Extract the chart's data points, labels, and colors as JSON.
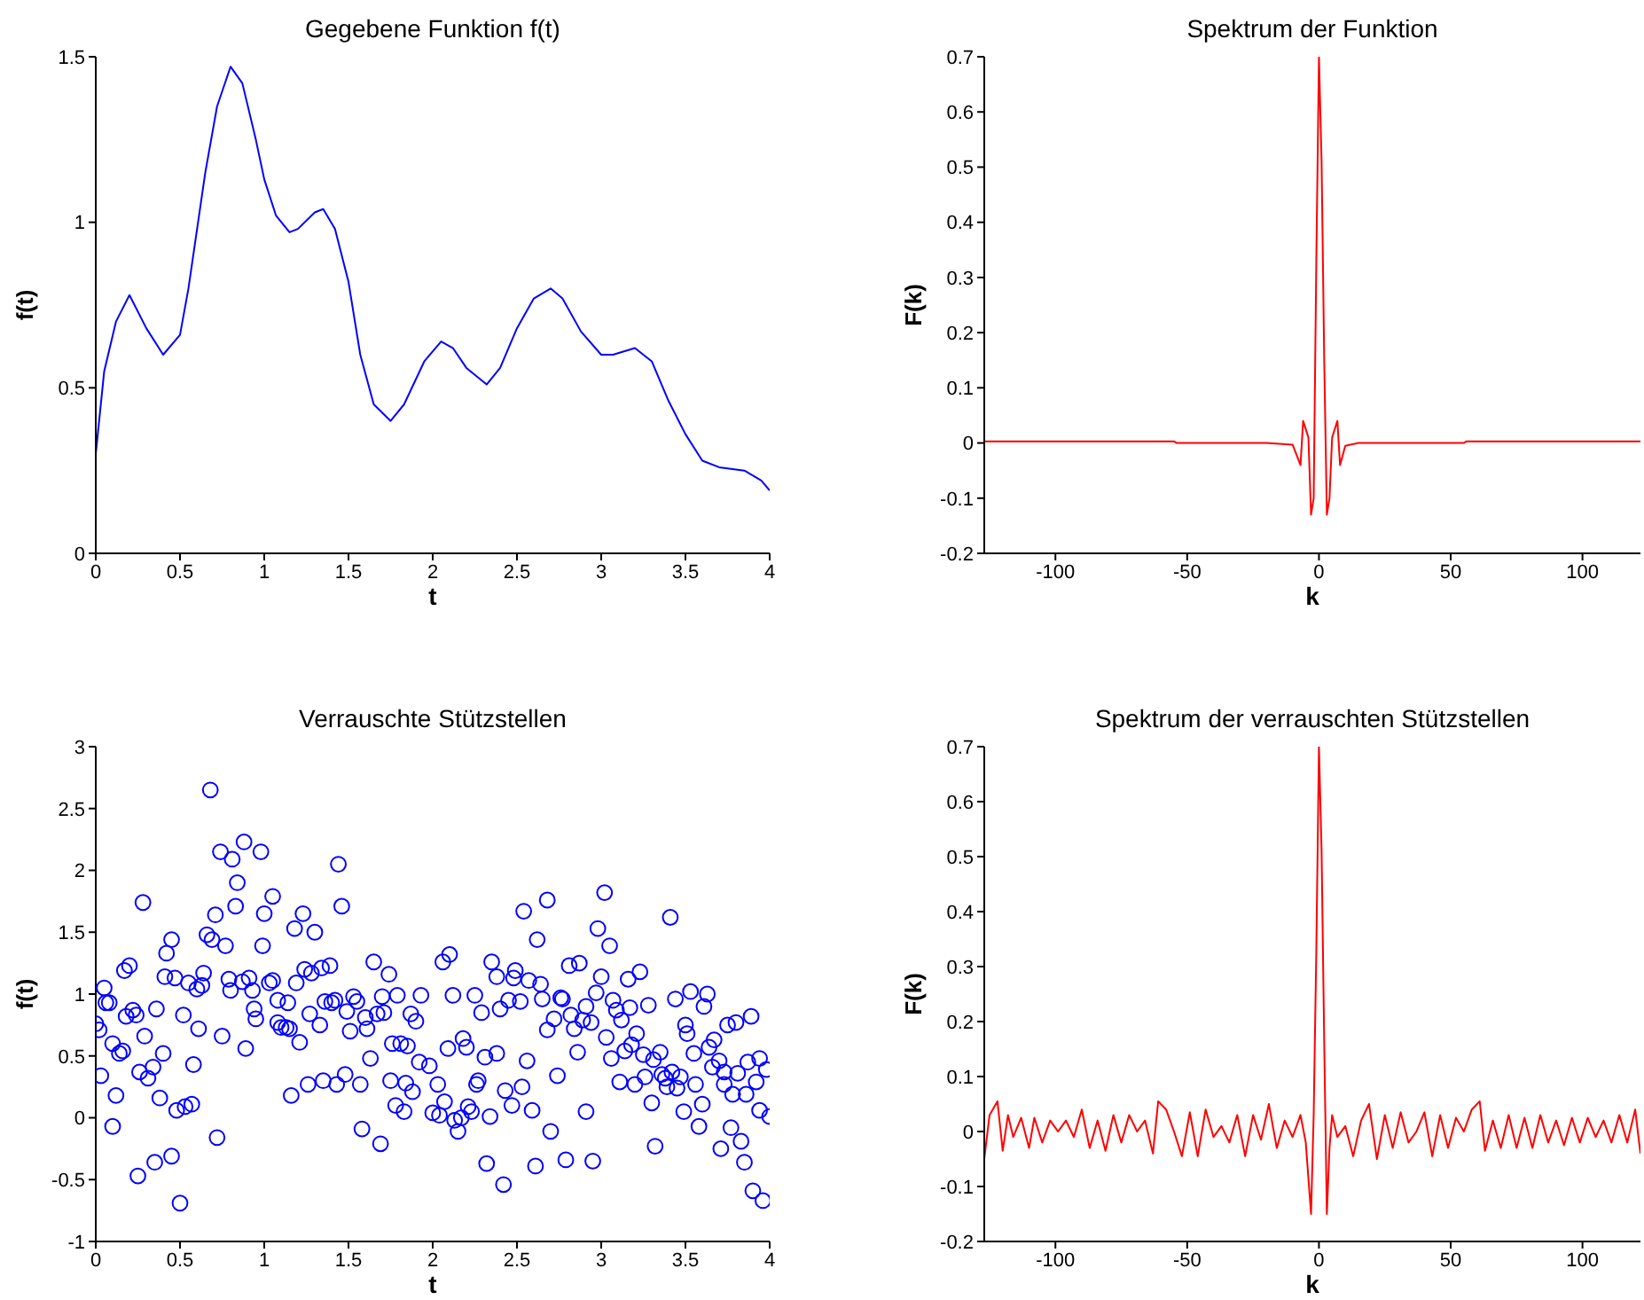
{
  "chart_data": [
    {
      "type": "line",
      "title": "Gegebene Funktion f(t)",
      "xlabel": "t",
      "ylabel": "f(t)",
      "color": "#0000ff",
      "xlim": [
        0,
        4
      ],
      "ylim": [
        0,
        1.5
      ],
      "xticks": [
        0,
        0.5,
        1,
        1.5,
        2,
        2.5,
        3,
        3.5,
        4
      ],
      "yticks": [
        0,
        0.5,
        1,
        1.5
      ],
      "x": [
        0,
        0.05,
        0.12,
        0.2,
        0.3,
        0.4,
        0.5,
        0.55,
        0.65,
        0.72,
        0.8,
        0.87,
        0.95,
        1.0,
        1.07,
        1.15,
        1.2,
        1.3,
        1.35,
        1.42,
        1.5,
        1.57,
        1.65,
        1.75,
        1.83,
        1.95,
        2.05,
        2.12,
        2.2,
        2.32,
        2.4,
        2.5,
        2.6,
        2.7,
        2.77,
        2.88,
        3.0,
        3.07,
        3.2,
        3.3,
        3.4,
        3.5,
        3.6,
        3.7,
        3.85,
        3.95,
        4.0
      ],
      "values": [
        0.3,
        0.55,
        0.7,
        0.78,
        0.68,
        0.6,
        0.66,
        0.8,
        1.15,
        1.35,
        1.47,
        1.42,
        1.25,
        1.13,
        1.02,
        0.97,
        0.98,
        1.03,
        1.04,
        0.98,
        0.82,
        0.6,
        0.45,
        0.4,
        0.45,
        0.58,
        0.64,
        0.62,
        0.56,
        0.51,
        0.56,
        0.68,
        0.77,
        0.8,
        0.77,
        0.67,
        0.6,
        0.6,
        0.62,
        0.58,
        0.46,
        0.36,
        0.28,
        0.26,
        0.25,
        0.22,
        0.19
      ]
    },
    {
      "type": "line",
      "title": "Spektrum der Funktion",
      "xlabel": "k",
      "ylabel": "F(k)",
      "color": "#ff0000",
      "xlim": [
        -127,
        122
      ],
      "ylim": [
        -0.2,
        0.7
      ],
      "xticks": [
        -100,
        -50,
        0,
        50,
        100
      ],
      "yticks": [
        -0.2,
        -0.1,
        0,
        0.1,
        0.2,
        0.3,
        0.4,
        0.5,
        0.6,
        0.7
      ],
      "x": [
        -127,
        -55,
        -54,
        -20,
        -10,
        -7,
        -6,
        -4,
        -3,
        -2,
        -1,
        0,
        1,
        2,
        3,
        4,
        5,
        7,
        8,
        10,
        15,
        55,
        56,
        122
      ],
      "values": [
        0.003,
        0.003,
        0,
        0,
        -0.003,
        -0.04,
        0.04,
        0.01,
        -0.13,
        -0.1,
        0.33,
        0.7,
        0.51,
        0.15,
        -0.13,
        -0.1,
        0.01,
        0.04,
        -0.04,
        -0.005,
        0,
        0,
        0.003,
        0.003
      ]
    },
    {
      "type": "scatter",
      "title": "Verrauschte Stützstellen",
      "xlabel": "t",
      "ylabel": "f(t)",
      "color": "#0000ff",
      "marker": "circle",
      "xlim": [
        0,
        4
      ],
      "ylim": [
        -1,
        3
      ],
      "xticks": [
        0,
        0.5,
        1,
        1.5,
        2,
        2.5,
        3,
        3.5,
        4
      ],
      "yticks": [
        -1,
        -0.5,
        0,
        0.5,
        1,
        1.5,
        2,
        2.5,
        3
      ],
      "x": [
        0,
        0.02,
        0.03,
        0.05,
        0.06,
        0.08,
        0.1,
        0.1,
        0.12,
        0.14,
        0.16,
        0.17,
        0.18,
        0.2,
        0.22,
        0.24,
        0.25,
        0.26,
        0.28,
        0.29,
        0.31,
        0.34,
        0.35,
        0.36,
        0.38,
        0.4,
        0.41,
        0.42,
        0.45,
        0.45,
        0.47,
        0.48,
        0.5,
        0.52,
        0.53,
        0.55,
        0.57,
        0.58,
        0.6,
        0.61,
        0.63,
        0.64,
        0.66,
        0.68,
        0.69,
        0.71,
        0.72,
        0.74,
        0.75,
        0.77,
        0.79,
        0.8,
        0.81,
        0.84,
        0.83,
        0.87,
        0.88,
        0.89,
        0.91,
        0.93,
        0.94,
        0.95,
        0.98,
        0.99,
        1.0,
        1.03,
        1.05,
        1.05,
        1.08,
        1.08,
        1.1,
        1.13,
        1.14,
        1.15,
        1.16,
        1.18,
        1.19,
        1.21,
        1.23,
        1.24,
        1.26,
        1.27,
        1.28,
        1.3,
        1.33,
        1.34,
        1.35,
        1.36,
        1.39,
        1.4,
        1.42,
        1.43,
        1.44,
        1.46,
        1.48,
        1.49,
        1.51,
        1.53,
        1.55,
        1.57,
        1.58,
        1.6,
        1.61,
        1.63,
        1.65,
        1.67,
        1.69,
        1.7,
        1.71,
        1.74,
        1.75,
        1.76,
        1.78,
        1.79,
        1.81,
        1.83,
        1.84,
        1.85,
        1.88,
        1.87,
        1.9,
        1.92,
        1.93,
        1.98,
        2.0,
        2.03,
        2.04,
        2.06,
        2.07,
        2.09,
        2.1,
        2.12,
        2.13,
        2.15,
        2.17,
        2.18,
        2.2,
        2.21,
        2.23,
        2.25,
        2.26,
        2.27,
        2.29,
        2.31,
        2.32,
        2.34,
        2.35,
        2.38,
        2.38,
        2.4,
        2.42,
        2.43,
        2.45,
        2.47,
        2.48,
        2.49,
        2.52,
        2.53,
        2.54,
        2.56,
        2.57,
        2.59,
        2.61,
        2.62,
        2.64,
        2.65,
        2.68,
        2.68,
        2.7,
        2.72,
        2.74,
        2.76,
        2.77,
        2.79,
        2.81,
        2.82,
        2.84,
        2.86,
        2.87,
        2.89,
        2.91,
        2.91,
        2.94,
        2.95,
        2.97,
        2.98,
        3.0,
        3.02,
        3.03,
        3.05,
        3.06,
        3.07,
        3.09,
        3.11,
        3.12,
        3.14,
        3.16,
        3.17,
        3.18,
        3.2,
        3.21,
        3.23,
        3.25,
        3.26,
        3.28,
        3.3,
        3.31,
        3.32,
        3.35,
        3.36,
        3.38,
        3.39,
        3.41,
        3.42,
        3.44,
        3.45,
        3.47,
        3.49,
        3.5,
        3.51,
        3.53,
        3.55,
        3.56,
        3.58,
        3.6,
        3.61,
        3.63,
        3.64,
        3.66,
        3.67,
        3.7,
        3.71,
        3.73,
        3.73,
        3.75,
        3.77,
        3.78,
        3.8,
        3.81,
        3.83,
        3.85,
        3.86,
        3.87,
        3.89,
        3.9,
        3.92,
        3.94,
        3.94,
        3.96,
        3.98,
        4.0
      ],
      "values": [
        0.76,
        0.71,
        0.34,
        1.05,
        0.93,
        0.93,
        -0.07,
        0.6,
        0.18,
        0.52,
        0.54,
        1.19,
        0.82,
        1.23,
        0.87,
        0.83,
        -0.47,
        0.37,
        1.74,
        0.66,
        0.32,
        0.41,
        -0.36,
        0.88,
        0.16,
        0.52,
        1.14,
        1.33,
        1.44,
        -0.31,
        1.13,
        0.06,
        -0.69,
        0.83,
        0.09,
        1.09,
        0.11,
        0.43,
        1.04,
        0.72,
        1.07,
        1.17,
        1.48,
        2.65,
        1.44,
        1.64,
        -0.16,
        2.15,
        0.66,
        1.39,
        1.12,
        1.03,
        2.09,
        1.9,
        1.71,
        1.1,
        2.23,
        0.56,
        1.13,
        1.03,
        0.88,
        0.8,
        2.15,
        1.39,
        1.65,
        1.09,
        1.11,
        1.79,
        0.95,
        0.77,
        0.73,
        0.73,
        0.93,
        0.72,
        0.18,
        1.53,
        1.09,
        0.61,
        1.65,
        1.2,
        0.27,
        0.84,
        1.17,
        1.5,
        0.75,
        1.21,
        0.3,
        0.94,
        1.23,
        0.93,
        0.95,
        0.27,
        2.05,
        1.71,
        0.35,
        0.86,
        0.7,
        0.98,
        0.94,
        0.27,
        -0.09,
        0.81,
        0.72,
        0.48,
        1.26,
        0.84,
        -0.21,
        0.98,
        0.85,
        1.16,
        0.3,
        0.6,
        0.1,
        0.99,
        0.6,
        0.05,
        0.28,
        0.58,
        0.21,
        0.84,
        0.78,
        0.45,
        0.99,
        0.42,
        0.04,
        0.27,
        0.02,
        1.26,
        0.13,
        0.56,
        1.32,
        0.99,
        -0.02,
        -0.11,
        0,
        0.64,
        0.57,
        0.09,
        0.05,
        0.99,
        0.27,
        0.3,
        0.85,
        0.49,
        -0.37,
        0.01,
        1.26,
        0.52,
        1.14,
        0.88,
        -0.54,
        0.22,
        0.95,
        0.1,
        1.13,
        1.19,
        0.94,
        0.25,
        1.67,
        0.46,
        1.11,
        0.06,
        -0.39,
        1.44,
        1.08,
        0.96,
        1.76,
        0.71,
        -0.11,
        0.8,
        0.34,
        0.97,
        0.96,
        -0.34,
        1.23,
        0.83,
        0.72,
        0.53,
        1.25,
        0.79,
        0.9,
        0.05,
        0.77,
        -0.35,
        1.01,
        1.53,
        1.14,
        1.82,
        0.65,
        1.39,
        0.48,
        0.95,
        0.87,
        0.29,
        0.79,
        0.54,
        1.12,
        0.89,
        0.59,
        0.27,
        0.68,
        1.18,
        0.51,
        0.33,
        0.91,
        0.12,
        0.47,
        -0.23,
        0.53,
        0.35,
        0.32,
        0.25,
        1.62,
        0.37,
        0.96,
        0.24,
        0.33,
        0.05,
        0.75,
        0.68,
        1.02,
        0.52,
        0.27,
        -0.07,
        0.11,
        0.9,
        1.0,
        0.57,
        0.41,
        0.63,
        0.46,
        -0.25,
        0.27,
        0.37,
        0.75,
        -0.08,
        0.19,
        0.77,
        0.36,
        -0.19,
        -0.36,
        0.19,
        0.45,
        0.82,
        -0.59,
        0.29,
        0.48,
        0.06,
        -0.67,
        0.39,
        0.01
      ]
    },
    {
      "type": "line",
      "title": "Spektrum der verrauschten Stützstellen",
      "xlabel": "k",
      "ylabel": "F(k)",
      "color": "#ff0000",
      "xlim": [
        -127,
        122
      ],
      "ylim": [
        -0.2,
        0.7
      ],
      "xticks": [
        -100,
        -50,
        0,
        50,
        100
      ],
      "yticks": [
        -0.2,
        -0.1,
        0,
        0.1,
        0.2,
        0.3,
        0.4,
        0.5,
        0.6,
        0.7
      ],
      "x": [
        -127,
        -125,
        -122,
        -120,
        -118,
        -116,
        -113,
        -110,
        -108,
        -105,
        -102,
        -99,
        -96,
        -93,
        -90,
        -87,
        -84,
        -81,
        -78,
        -75,
        -72,
        -69,
        -66,
        -63,
        -61,
        -58,
        -55,
        -52,
        -49,
        -46,
        -43,
        -40,
        -37,
        -34,
        -31,
        -28,
        -25,
        -22,
        -19,
        -16,
        -13,
        -10,
        -7,
        -5,
        -3,
        -2,
        -1,
        0,
        1,
        2,
        3,
        4,
        5,
        7,
        10,
        13,
        16,
        19,
        22,
        25,
        28,
        31,
        34,
        37,
        40,
        43,
        46,
        49,
        52,
        55,
        58,
        61,
        63,
        66,
        69,
        72,
        75,
        78,
        81,
        84,
        87,
        90,
        93,
        96,
        99,
        102,
        105,
        108,
        111,
        114,
        117,
        120,
        122
      ],
      "values": [
        -0.05,
        0.03,
        0.055,
        -0.035,
        0.03,
        -0.01,
        0.025,
        -0.03,
        0.025,
        -0.02,
        0.02,
        0,
        0.02,
        -0.01,
        0.04,
        -0.03,
        0.02,
        -0.035,
        0.03,
        -0.02,
        0.03,
        0,
        0.02,
        -0.04,
        0.055,
        0.04,
        0,
        -0.045,
        0.035,
        -0.045,
        0.04,
        -0.01,
        0.01,
        -0.02,
        0.03,
        -0.045,
        0.03,
        -0.015,
        0.05,
        -0.03,
        0.02,
        -0.01,
        0.03,
        -0.02,
        -0.15,
        0.03,
        0.33,
        0.7,
        0.51,
        0.16,
        -0.15,
        -0.03,
        0.03,
        -0.01,
        0.01,
        -0.045,
        0.02,
        0.05,
        -0.05,
        0.03,
        -0.03,
        0.035,
        -0.02,
        0,
        0.035,
        -0.045,
        0.03,
        -0.03,
        0.025,
        0,
        0.04,
        0.055,
        -0.035,
        0.02,
        -0.03,
        0.03,
        -0.03,
        0.025,
        -0.03,
        0.03,
        -0.02,
        0.02,
        -0.025,
        0.025,
        -0.02,
        0.025,
        -0.01,
        0.02,
        -0.02,
        0.03,
        -0.02,
        0.04,
        -0.04
      ]
    }
  ]
}
